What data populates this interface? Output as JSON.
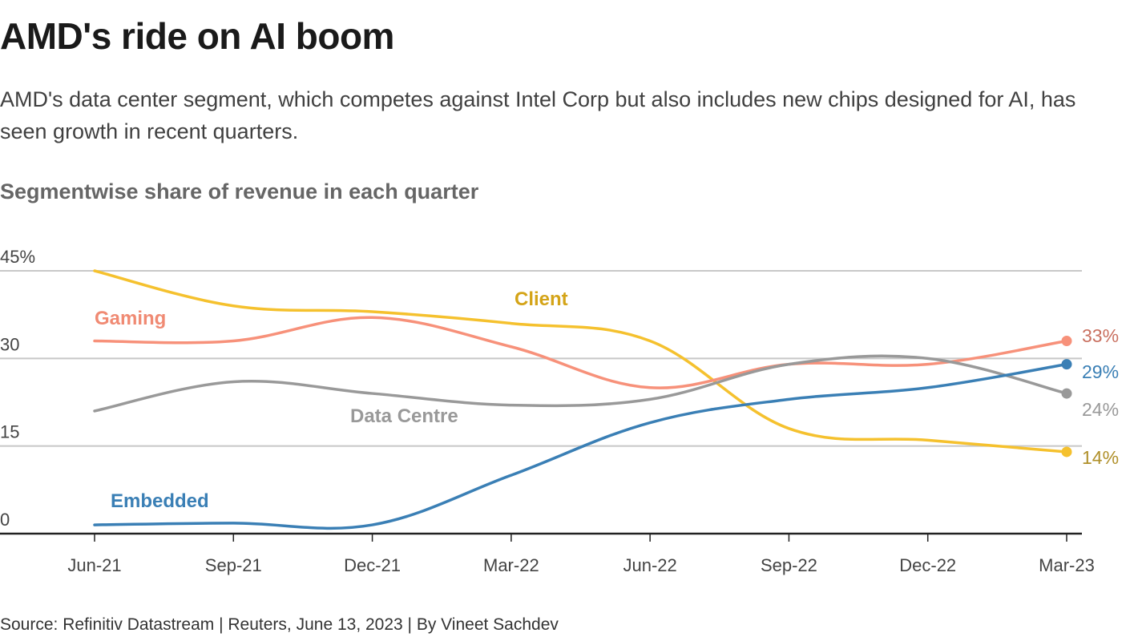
{
  "header": {
    "title": "AMD's ride on AI boom",
    "subtitle": "AMD's data center segment, which competes against Intel Corp but also includes new chips designed for AI, has seen growth in recent quarters.",
    "chart_title": "Segmentwise share of revenue in each quarter"
  },
  "footer": {
    "source": "Source: Refinitiv Datastream | Reuters, June 13, 2023 | By Vineet Sachdev"
  },
  "chart_data": {
    "type": "line",
    "title": "Segmentwise share of revenue in each quarter",
    "xlabel": "",
    "ylabel": "",
    "x": [
      "Jun-21",
      "Sep-21",
      "Dec-21",
      "Mar-22",
      "Jun-22",
      "Sep-22",
      "Dec-22",
      "Mar-23"
    ],
    "ylim": [
      0,
      45
    ],
    "yticks": [
      0,
      15,
      30,
      45
    ],
    "ytick_labels": [
      "0",
      "15",
      "30",
      "45%"
    ],
    "grid": true,
    "legend": "inline-labels",
    "series": [
      {
        "name": "Client",
        "color": "#f5c12e",
        "label_color": "#d4a418",
        "end_label_color": "#b0902a",
        "end_label": "14%",
        "values": [
          45,
          39,
          38,
          36,
          33,
          18,
          16,
          14
        ]
      },
      {
        "name": "Gaming",
        "color": "#f7917a",
        "label_color": "#f08a73",
        "end_label_color": "#c97060",
        "end_label": "33%",
        "values": [
          33,
          33,
          37,
          32,
          25,
          29,
          29,
          33
        ]
      },
      {
        "name": "Data Centre",
        "color": "#999999",
        "label_color": "#999999",
        "end_label_color": "#999999",
        "end_label": "24%",
        "values": [
          21,
          26,
          24,
          22,
          23,
          29,
          30,
          24
        ]
      },
      {
        "name": "Embedded",
        "color": "#3a7fb5",
        "label_color": "#3a7fb5",
        "end_label_color": "#3a7fb5",
        "end_label": "29%",
        "values": [
          1.5,
          1.8,
          1.5,
          10,
          19,
          23,
          25,
          29
        ]
      }
    ]
  }
}
